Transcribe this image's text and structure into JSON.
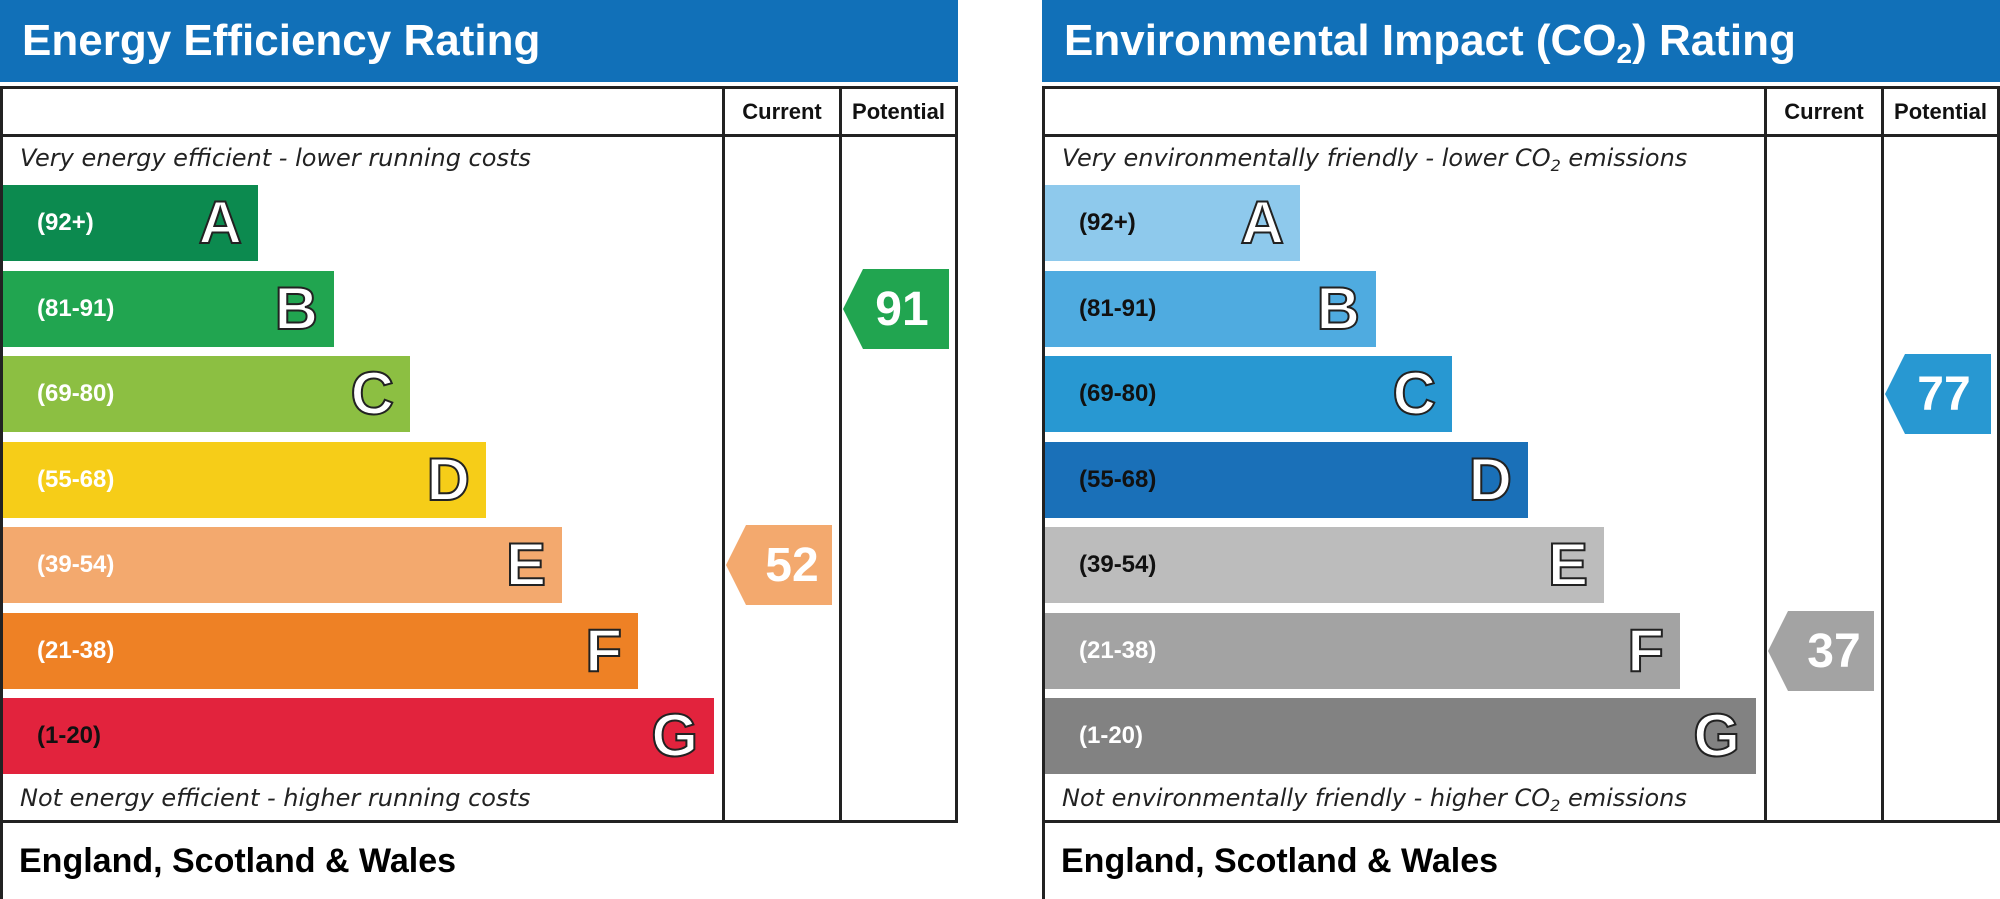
{
  "chart_data": [
    {
      "type": "bar",
      "title": "Energy Efficiency Rating",
      "columns": [
        "Current",
        "Potential"
      ],
      "top_note": "Very energy efficient - lower running costs",
      "bottom_note": "Not energy efficient - higher running costs",
      "footer": "England, Scotland & Wales",
      "bands": [
        {
          "letter": "A",
          "range": "(92+)",
          "color": "#0c8a4f"
        },
        {
          "letter": "B",
          "range": "(81-91)",
          "color": "#21a550"
        },
        {
          "letter": "C",
          "range": "(69-80)",
          "color": "#8cbf42"
        },
        {
          "letter": "D",
          "range": "(55-68)",
          "color": "#f6cd18"
        },
        {
          "letter": "E",
          "range": "(39-54)",
          "color": "#f3a96e"
        },
        {
          "letter": "F",
          "range": "(21-38)",
          "color": "#ee8125"
        },
        {
          "letter": "G",
          "range": "(1-20)",
          "color": "#e2233d"
        }
      ],
      "current": {
        "value": "52",
        "band": "E",
        "color": "#f3a96e"
      },
      "potential": {
        "value": "91",
        "band": "B",
        "color": "#21a550"
      }
    },
    {
      "type": "bar",
      "title": "Environmental Impact (CO",
      "title_sub": "2",
      "title_end": ") Rating",
      "columns": [
        "Current",
        "Potential"
      ],
      "top_note": "Very environmentally friendly - lower CO",
      "top_note_sub": "2",
      "top_note_end": " emissions",
      "bottom_note": "Not environmentally friendly - higher CO",
      "bottom_note_sub": "2",
      "bottom_note_end": " emissions",
      "footer": "England, Scotland & Wales",
      "bands": [
        {
          "letter": "A",
          "range": "(92+)",
          "color": "#8ec9ec"
        },
        {
          "letter": "B",
          "range": "(81-91)",
          "color": "#4fabe0"
        },
        {
          "letter": "C",
          "range": "(69-80)",
          "color": "#2898d2"
        },
        {
          "letter": "D",
          "range": "(55-68)",
          "color": "#1a70b8"
        },
        {
          "letter": "E",
          "range": "(39-54)",
          "color": "#bcbcbc"
        },
        {
          "letter": "F",
          "range": "(21-38)",
          "color": "#a3a3a3"
        },
        {
          "letter": "G",
          "range": "(1-20)",
          "color": "#828282"
        }
      ],
      "current": {
        "value": "37",
        "band": "F",
        "color": "#a3a3a3"
      },
      "potential": {
        "value": "77",
        "band": "C",
        "color": "#2898d2"
      }
    }
  ]
}
